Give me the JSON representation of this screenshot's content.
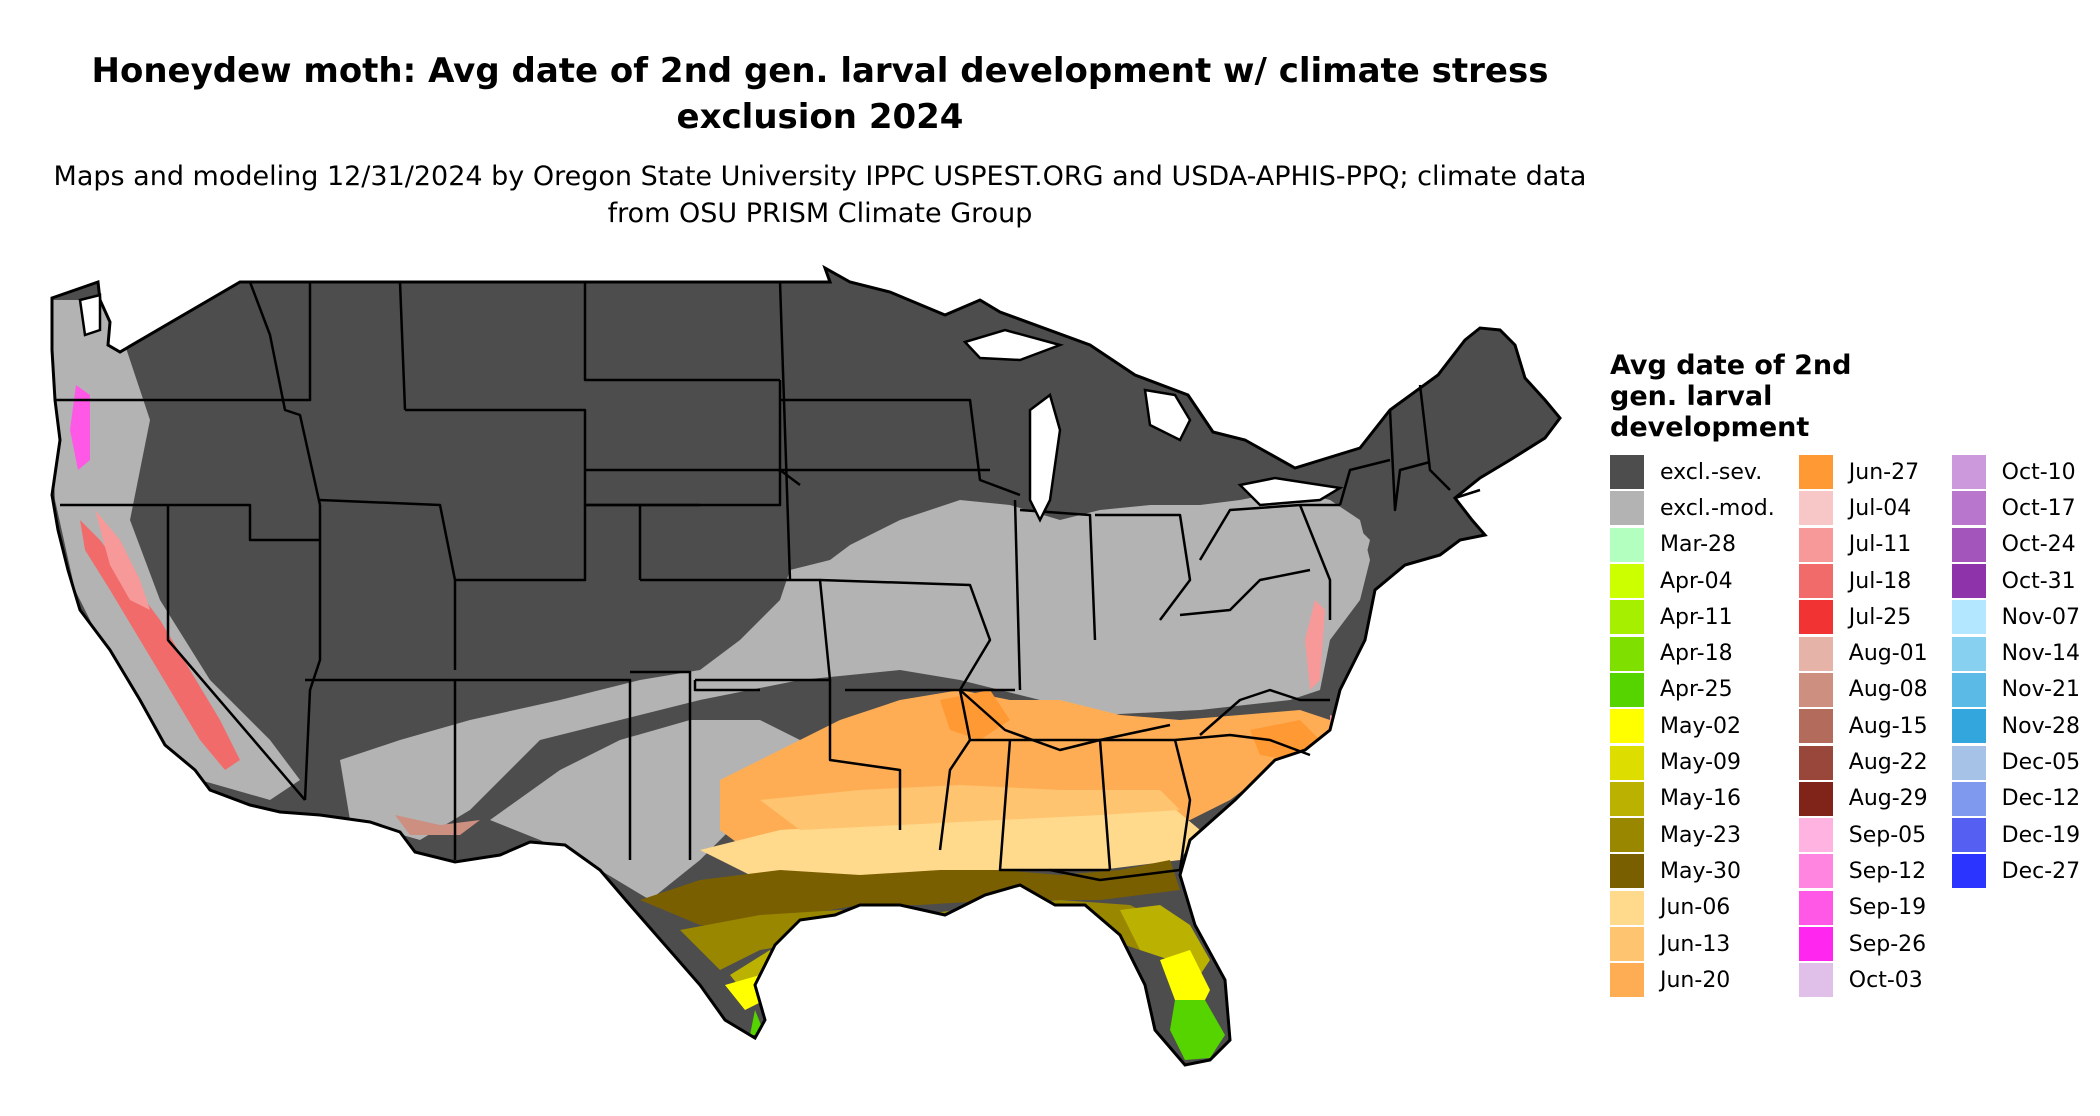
{
  "map": {
    "title": "Honeydew moth: Avg date of 2nd gen. larval development w/ climate stress exclusion 2024",
    "subtitle": "Maps and modeling 12/31/2024 by Oregon State University IPPC USPEST.ORG and USDA-APHIS-PPQ; climate data from OSU PRISM Climate Group",
    "region": "Contiguous United States",
    "border_color": "#000000",
    "colors": {
      "severe_exclusion": "#4d4d4d",
      "moderate_exclusion": "#b3b3b3",
      "outline": "#000000"
    }
  },
  "legend": {
    "title": "Avg date of 2nd gen. larval development",
    "columns": [
      [
        {
          "label": "excl.-sev.",
          "color": "#4d4d4d"
        },
        {
          "label": "excl.-mod.",
          "color": "#b3b3b3"
        },
        {
          "label": "Mar-28",
          "color": "#b2ffc0"
        },
        {
          "label": "Apr-04",
          "color": "#ccff00"
        },
        {
          "label": "Apr-11",
          "color": "#a6ef00"
        },
        {
          "label": "Apr-18",
          "color": "#7fe000"
        },
        {
          "label": "Apr-25",
          "color": "#55d400"
        },
        {
          "label": "May-02",
          "color": "#ffff00"
        },
        {
          "label": "May-09",
          "color": "#dddd00"
        },
        {
          "label": "May-16",
          "color": "#bbb100"
        },
        {
          "label": "May-23",
          "color": "#9a8700"
        },
        {
          "label": "May-30",
          "color": "#7a5f00"
        },
        {
          "label": "Jun-06",
          "color": "#ffd98c"
        },
        {
          "label": "Jun-13",
          "color": "#ffc470"
        },
        {
          "label": "Jun-20",
          "color": "#ffad55"
        }
      ],
      [
        {
          "label": "Jun-27",
          "color": "#ff9933"
        },
        {
          "label": "Jul-04",
          "color": "#f7c7c7"
        },
        {
          "label": "Jul-11",
          "color": "#f79999"
        },
        {
          "label": "Jul-18",
          "color": "#f26b6b"
        },
        {
          "label": "Jul-25",
          "color": "#f23333"
        },
        {
          "label": "Aug-01",
          "color": "#e6b3a8"
        },
        {
          "label": "Aug-08",
          "color": "#cc8f80"
        },
        {
          "label": "Aug-15",
          "color": "#b36b5c"
        },
        {
          "label": "Aug-22",
          "color": "#99473a"
        },
        {
          "label": "Aug-29",
          "color": "#80241a"
        },
        {
          "label": "Sep-05",
          "color": "#ffb3e0"
        },
        {
          "label": "Sep-12",
          "color": "#ff85e0"
        },
        {
          "label": "Sep-19",
          "color": "#ff57e6"
        },
        {
          "label": "Sep-26",
          "color": "#ff26f0"
        },
        {
          "label": "Oct-03",
          "color": "#e0bfe8"
        }
      ],
      [
        {
          "label": "Oct-10",
          "color": "#cc99dd"
        },
        {
          "label": "Oct-17",
          "color": "#b877cc"
        },
        {
          "label": "Oct-24",
          "color": "#a355bb"
        },
        {
          "label": "Oct-31",
          "color": "#8f33aa"
        },
        {
          "label": "Nov-07",
          "color": "#b3e6ff"
        },
        {
          "label": "Nov-14",
          "color": "#88d0ef"
        },
        {
          "label": "Nov-21",
          "color": "#5cbae6"
        },
        {
          "label": "Nov-28",
          "color": "#33a6dd"
        },
        {
          "label": "Dec-05",
          "color": "#a6c2e6"
        },
        {
          "label": "Dec-12",
          "color": "#7f99ee"
        },
        {
          "label": "Dec-19",
          "color": "#5560f2"
        },
        {
          "label": "Dec-27",
          "color": "#2b33ff"
        }
      ]
    ]
  }
}
